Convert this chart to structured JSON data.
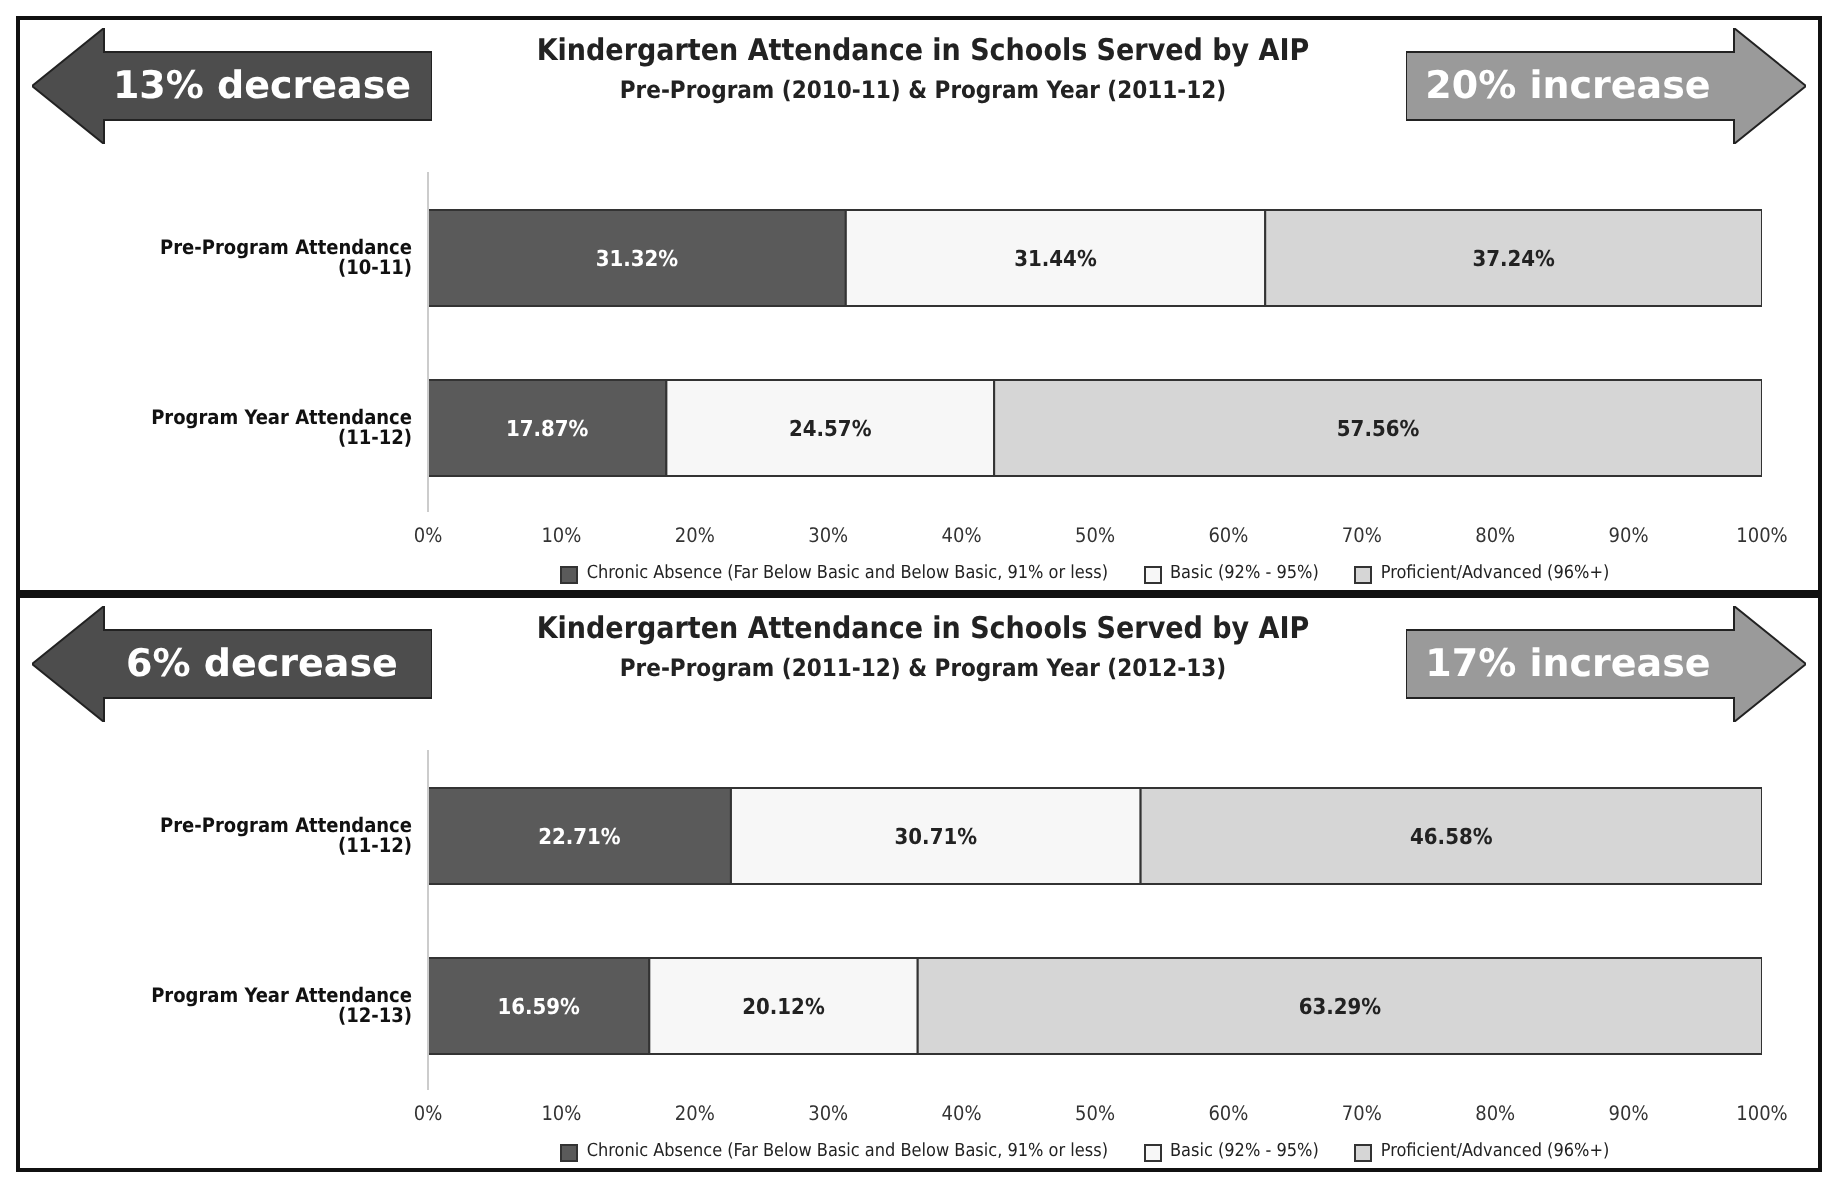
{
  "chart_data": [
    {
      "type": "bar",
      "orientation": "horizontal",
      "stacked": true,
      "title": "Kindergarten Attendance in Schools Served by AIP",
      "subtitle": "Pre-Program (2010-11) & Program Year (2011-12)",
      "categories": [
        "Pre-Program Attendance (10-11)",
        "Program Year Attendance (11-12)"
      ],
      "series": [
        {
          "name": "Chronic Absence  (Far Below Basic and Below Basic, 91% or less)",
          "color": "#5a5a5a",
          "values": [
            31.32,
            17.87
          ],
          "value_labels": [
            "31.32%",
            "17.87%"
          ]
        },
        {
          "name": "Basic (92% - 95%)",
          "color": "#f7f7f7",
          "values": [
            31.44,
            24.57
          ],
          "value_labels": [
            "31.44%",
            "24.57%"
          ]
        },
        {
          "name": "Proficient/Advanced (96%+)",
          "color": "#d6d6d6",
          "values": [
            37.24,
            57.56
          ],
          "value_labels": [
            "37.24%",
            "57.56%"
          ]
        }
      ],
      "xlim": [
        0,
        100
      ],
      "xticks": [
        {
          "value": 0,
          "label": "0%"
        },
        {
          "value": 10,
          "label": "10%"
        },
        {
          "value": 20,
          "label": "20%"
        },
        {
          "value": 30,
          "label": "30%"
        },
        {
          "value": 40,
          "label": "40%"
        },
        {
          "value": 50,
          "label": "50%"
        },
        {
          "value": 60,
          "label": "60%"
        },
        {
          "value": 70,
          "label": "70%"
        },
        {
          "value": 80,
          "label": "80%"
        },
        {
          "value": 90,
          "label": "90%"
        },
        {
          "value": 100,
          "label": "100%"
        }
      ],
      "legend": "bottom",
      "annotations": [
        "13% decrease",
        "20% increase"
      ]
    },
    {
      "type": "bar",
      "orientation": "horizontal",
      "stacked": true,
      "title": "Kindergarten Attendance in Schools Served by AIP",
      "subtitle": "Pre-Program (2011-12) & Program Year (2012-13)",
      "categories": [
        "Pre-Program Attendance (11-12)",
        "Program Year Attendance (12-13)"
      ],
      "series": [
        {
          "name": "Chronic Absence  (Far Below Basic and Below Basic, 91% or less)",
          "color": "#5a5a5a",
          "values": [
            22.71,
            16.59
          ],
          "value_labels": [
            "22.71%",
            "16.59%"
          ]
        },
        {
          "name": "Basic (92% - 95%)",
          "color": "#f7f7f7",
          "values": [
            30.71,
            20.12
          ],
          "value_labels": [
            "30.71%",
            "20.12%"
          ]
        },
        {
          "name": "Proficient/Advanced (96%+)",
          "color": "#d6d6d6",
          "values": [
            46.58,
            63.29
          ],
          "value_labels": [
            "46.58%",
            "63.29%"
          ]
        }
      ],
      "xlim": [
        0,
        100
      ],
      "xticks": [
        {
          "value": 0,
          "label": "0%"
        },
        {
          "value": 10,
          "label": "10%"
        },
        {
          "value": 20,
          "label": "20%"
        },
        {
          "value": 30,
          "label": "30%"
        },
        {
          "value": 40,
          "label": "40%"
        },
        {
          "value": 50,
          "label": "50%"
        },
        {
          "value": 60,
          "label": "60%"
        },
        {
          "value": 70,
          "label": "70%"
        },
        {
          "value": 80,
          "label": "80%"
        },
        {
          "value": 90,
          "label": "90%"
        },
        {
          "value": 100,
          "label": "100%"
        }
      ],
      "legend": "bottom",
      "annotations": [
        "6% decrease",
        "17% increase"
      ]
    }
  ]
}
